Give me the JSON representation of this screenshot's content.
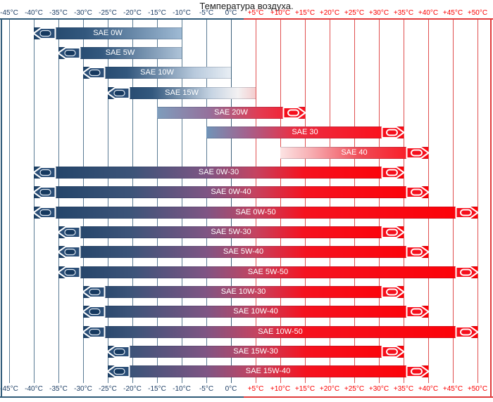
{
  "palette": {
    "background": "#ffffff",
    "title_text": "#1a1a1a",
    "negative_label": "#1e3f66",
    "positive_label": "#fb0000",
    "grid_negative": "#5a7b94",
    "grid_zero": "#3c617c",
    "grid_positive": "#e04f4f",
    "axis_line_negative": "#2f5a78",
    "axis_line_positive": "#e03b3b",
    "bar_label_text": "#ffffff",
    "left_arrow_fill": "#2a4e77",
    "left_arrow_inner": "#16395f",
    "right_arrow_fill": "#f50f1c",
    "arrow_outline": "#ffffff"
  },
  "chart_data": {
    "type": "bar",
    "orientation": "horizontal-range",
    "title": "Температура воздуха.",
    "x_axis": {
      "unit": "°C",
      "min": -45,
      "max": 50,
      "step": 5,
      "tick_labels_shown": "top and bottom",
      "ticks": [
        {
          "t": -45,
          "label": "-45°C"
        },
        {
          "t": -40,
          "label": "-40°C"
        },
        {
          "t": -35,
          "label": "-35°C"
        },
        {
          "t": -30,
          "label": "-30°C"
        },
        {
          "t": -25,
          "label": "-25°C"
        },
        {
          "t": -20,
          "label": "-20°C"
        },
        {
          "t": -15,
          "label": "-15°C"
        },
        {
          "t": -10,
          "label": "-10°C"
        },
        {
          "t": -5,
          "label": "-5°C"
        },
        {
          "t": 0,
          "label": "0°C"
        },
        {
          "t": 5,
          "label": "+5°C"
        },
        {
          "t": 10,
          "label": "+10°C"
        },
        {
          "t": 15,
          "label": "+15°C"
        },
        {
          "t": 20,
          "label": "+20°C"
        },
        {
          "t": 25,
          "label": "+25°C"
        },
        {
          "t": 30,
          "label": "+30°C"
        },
        {
          "t": 35,
          "label": "+35°C"
        },
        {
          "t": 40,
          "label": "+40°C"
        },
        {
          "t": 45,
          "label": "+45°C"
        },
        {
          "t": 50,
          "label": "+50°C"
        }
      ]
    },
    "series": [
      {
        "label": "SAE 0W",
        "from": -40,
        "to": -10,
        "arrow_left": true,
        "arrow_right": false,
        "gradient": [
          [
            0,
            "#1d4166"
          ],
          [
            35,
            "#33587e"
          ],
          [
            100,
            "#9fbad4"
          ]
        ]
      },
      {
        "label": "SAE 5W",
        "from": -35,
        "to": -10,
        "arrow_left": true,
        "arrow_right": false,
        "gradient": [
          [
            0,
            "#1d4166"
          ],
          [
            35,
            "#33587e"
          ],
          [
            100,
            "#aec3d8"
          ]
        ]
      },
      {
        "label": "SAE 10W",
        "from": -30,
        "to": 0,
        "arrow_left": true,
        "arrow_right": false,
        "gradient": [
          [
            0,
            "#1d4166"
          ],
          [
            30,
            "#33587e"
          ],
          [
            75,
            "#b7c9dc"
          ],
          [
            100,
            "#e8eef4"
          ]
        ]
      },
      {
        "label": "SAE 15W",
        "from": -25,
        "to": 5,
        "arrow_left": true,
        "arrow_right": false,
        "gradient": [
          [
            0,
            "#1d4166"
          ],
          [
            30,
            "#33587e"
          ],
          [
            70,
            "#c6d4e3"
          ],
          [
            88,
            "#f3f1f2"
          ],
          [
            100,
            "#f4cdce"
          ]
        ]
      },
      {
        "label": "SAE 20W",
        "from": -15,
        "to": 15,
        "arrow_left": false,
        "arrow_right": true,
        "gradient": [
          [
            0,
            "#7e9dbc"
          ],
          [
            35,
            "#95719c"
          ],
          [
            70,
            "#e43a50"
          ],
          [
            100,
            "#fc1220"
          ]
        ]
      },
      {
        "label": "SAE 30",
        "from": -5,
        "to": 35,
        "arrow_left": false,
        "arrow_right": true,
        "gradient": [
          [
            0,
            "#6f94b8"
          ],
          [
            20,
            "#a2638f"
          ],
          [
            45,
            "#ec2f43"
          ],
          [
            100,
            "#fd0a14"
          ]
        ]
      },
      {
        "label": "SAE 40",
        "from": 10,
        "to": 40,
        "arrow_left": false,
        "arrow_right": true,
        "gradient": [
          [
            0,
            "#fce3e3"
          ],
          [
            20,
            "#f7b0b4"
          ],
          [
            55,
            "#f04a55"
          ],
          [
            100,
            "#fd0a14"
          ]
        ]
      },
      {
        "label": "SAE 0W-30",
        "from": -40,
        "to": 35,
        "arrow_left": true,
        "arrow_right": true,
        "gradient": [
          [
            0,
            "#1d4166"
          ],
          [
            27,
            "#3d5479"
          ],
          [
            47,
            "#7f5584"
          ],
          [
            60,
            "#c54360"
          ],
          [
            73,
            "#f5121f"
          ],
          [
            100,
            "#fd0006"
          ]
        ]
      },
      {
        "label": "SAE 0W-40",
        "from": -40,
        "to": 40,
        "arrow_left": true,
        "arrow_right": true,
        "gradient": [
          [
            0,
            "#1d4166"
          ],
          [
            25,
            "#3d5479"
          ],
          [
            44,
            "#7f5584"
          ],
          [
            56,
            "#c54360"
          ],
          [
            69,
            "#f5121f"
          ],
          [
            100,
            "#fd0006"
          ]
        ]
      },
      {
        "label": "SAE 0W-50",
        "from": -40,
        "to": 50,
        "arrow_left": true,
        "arrow_right": true,
        "gradient": [
          [
            0,
            "#1d4166"
          ],
          [
            22,
            "#3d5479"
          ],
          [
            39,
            "#7f5584"
          ],
          [
            50,
            "#c54360"
          ],
          [
            61,
            "#f5121f"
          ],
          [
            100,
            "#fd0006"
          ]
        ]
      },
      {
        "label": "SAE 5W-30",
        "from": -35,
        "to": 35,
        "arrow_left": true,
        "arrow_right": true,
        "gradient": [
          [
            0,
            "#1d4166"
          ],
          [
            21,
            "#3d5479"
          ],
          [
            43,
            "#7f5584"
          ],
          [
            57,
            "#c54360"
          ],
          [
            71,
            "#f5121f"
          ],
          [
            100,
            "#fd0006"
          ]
        ]
      },
      {
        "label": "SAE 5W-40",
        "from": -35,
        "to": 40,
        "arrow_left": true,
        "arrow_right": true,
        "gradient": [
          [
            0,
            "#1d4166"
          ],
          [
            20,
            "#3d5479"
          ],
          [
            40,
            "#7f5584"
          ],
          [
            53,
            "#c54360"
          ],
          [
            67,
            "#f5121f"
          ],
          [
            100,
            "#fd0006"
          ]
        ]
      },
      {
        "label": "SAE 5W-50",
        "from": -35,
        "to": 50,
        "arrow_left": true,
        "arrow_right": true,
        "gradient": [
          [
            0,
            "#1d4166"
          ],
          [
            18,
            "#3d5479"
          ],
          [
            35,
            "#7f5584"
          ],
          [
            47,
            "#c54360"
          ],
          [
            59,
            "#f5121f"
          ],
          [
            100,
            "#fd0006"
          ]
        ]
      },
      {
        "label": "SAE 10W-30",
        "from": -30,
        "to": 35,
        "arrow_left": true,
        "arrow_right": true,
        "gradient": [
          [
            0,
            "#1d4166"
          ],
          [
            15,
            "#3d5479"
          ],
          [
            38,
            "#7f5584"
          ],
          [
            54,
            "#c54360"
          ],
          [
            69,
            "#f5121f"
          ],
          [
            100,
            "#fd0006"
          ]
        ]
      },
      {
        "label": "SAE 10W-40",
        "from": -30,
        "to": 40,
        "arrow_left": true,
        "arrow_right": true,
        "gradient": [
          [
            0,
            "#1d4166"
          ],
          [
            14,
            "#3d5479"
          ],
          [
            36,
            "#7f5584"
          ],
          [
            50,
            "#c54360"
          ],
          [
            64,
            "#f5121f"
          ],
          [
            100,
            "#fd0006"
          ]
        ]
      },
      {
        "label": "SAE 10W-50",
        "from": -30,
        "to": 50,
        "arrow_left": true,
        "arrow_right": true,
        "gradient": [
          [
            0,
            "#1d4166"
          ],
          [
            13,
            "#3d5479"
          ],
          [
            31,
            "#7f5584"
          ],
          [
            44,
            "#c54360"
          ],
          [
            56,
            "#f5121f"
          ],
          [
            100,
            "#fd0006"
          ]
        ]
      },
      {
        "label": "SAE 15W-30",
        "from": -25,
        "to": 35,
        "arrow_left": true,
        "arrow_right": true,
        "gradient": [
          [
            0,
            "#1d4166"
          ],
          [
            8,
            "#3d5479"
          ],
          [
            33,
            "#7f5584"
          ],
          [
            50,
            "#c54360"
          ],
          [
            67,
            "#f5121f"
          ],
          [
            100,
            "#fd0006"
          ]
        ]
      },
      {
        "label": "SAE 15W-40",
        "from": -25,
        "to": 40,
        "arrow_left": true,
        "arrow_right": true,
        "gradient": [
          [
            0,
            "#1d4166"
          ],
          [
            8,
            "#3d5479"
          ],
          [
            31,
            "#7f5584"
          ],
          [
            46,
            "#c54360"
          ],
          [
            62,
            "#f5121f"
          ],
          [
            100,
            "#fd0006"
          ]
        ]
      }
    ]
  }
}
